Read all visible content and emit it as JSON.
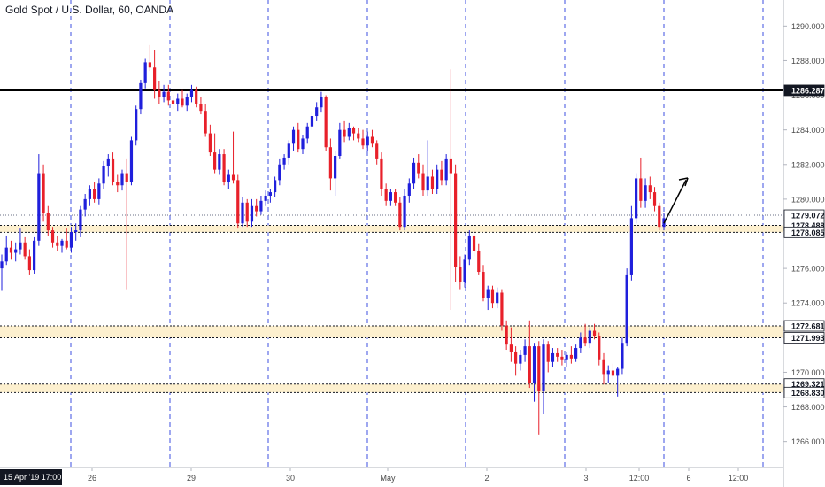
{
  "header": {
    "title": "Gold Spot / U.S. Dollar, 60, OANDA"
  },
  "colors": {
    "up": "#1f1fdc",
    "down": "#e8202a",
    "zone_fill": "#fdf0cf",
    "grid_dash": "#3d4fe0",
    "axis_text": "#4a4a4a",
    "label_bg": "#ffffff",
    "date_badge_bg": "#131722"
  },
  "chart_data": {
    "type": "candlestick",
    "title": "Gold Spot / U.S. Dollar, 60, OANDA",
    "x_tick_labels": [
      "26",
      "29",
      "30",
      "May",
      "2",
      "3",
      "12:00",
      "6",
      "12:00"
    ],
    "x_start_label": "15 Apr '19  17:00",
    "y_tick_labels": [
      "1266.000",
      "1268.000",
      "1270.000",
      "1272.000",
      "1274.000",
      "1276.000",
      "1278.000",
      "1280.000",
      "1282.000",
      "1284.000",
      "1286.000",
      "1288.000",
      "1290.000"
    ],
    "ylim": [
      1264.5,
      1291.5
    ],
    "y_ticks": [
      1266,
      1268,
      1270,
      1272,
      1274,
      1276,
      1278,
      1280,
      1282,
      1284,
      1286,
      1288,
      1290
    ],
    "price_lines": [
      {
        "label": "1286.287",
        "value": 1286.287,
        "style": "solid"
      },
      {
        "label": "1279.072",
        "value": 1279.072,
        "style": "dotted"
      }
    ],
    "zones": [
      {
        "top": 1278.488,
        "bottom": 1278.085,
        "top_label": "1278.488",
        "bottom_label": "1278.085"
      },
      {
        "top": 1272.681,
        "bottom": 1271.993,
        "top_label": "1272.681",
        "bottom_label": "1271.993"
      },
      {
        "top": 1269.321,
        "bottom": 1268.83,
        "top_label": "1269.321",
        "bottom_label": "1268.830"
      }
    ],
    "session_dividers": 8,
    "annotation": "upward arrow",
    "candles": [
      [
        1276.0,
        1276.8,
        1274.7,
        1276.4
      ],
      [
        1276.4,
        1277.9,
        1276.2,
        1277.2
      ],
      [
        1277.2,
        1277.6,
        1276.5,
        1276.9
      ],
      [
        1276.9,
        1277.5,
        1276.4,
        1277.1
      ],
      [
        1277.1,
        1278.3,
        1276.8,
        1277.5
      ],
      [
        1277.5,
        1277.8,
        1276.5,
        1276.7
      ],
      [
        1276.7,
        1277.1,
        1275.6,
        1275.9
      ],
      [
        1275.9,
        1277.8,
        1275.7,
        1277.6
      ],
      [
        1277.6,
        1282.6,
        1277.3,
        1281.5
      ],
      [
        1281.5,
        1282.0,
        1278.7,
        1279.2
      ],
      [
        1279.2,
        1279.6,
        1277.9,
        1278.2
      ],
      [
        1278.2,
        1278.4,
        1277.2,
        1277.5
      ],
      [
        1277.5,
        1277.9,
        1277.0,
        1277.3
      ],
      [
        1277.3,
        1277.7,
        1276.9,
        1277.6
      ],
      [
        1277.6,
        1278.3,
        1277.1,
        1277.2
      ],
      [
        1277.2,
        1278.4,
        1276.9,
        1278.1
      ],
      [
        1278.1,
        1278.6,
        1277.6,
        1278.2
      ],
      [
        1278.2,
        1279.6,
        1277.8,
        1279.4
      ],
      [
        1279.4,
        1280.3,
        1279.0,
        1280.0
      ],
      [
        1280.0,
        1280.8,
        1279.6,
        1280.6
      ],
      [
        1280.6,
        1281.0,
        1279.8,
        1280.0
      ],
      [
        1280.0,
        1281.2,
        1279.7,
        1280.9
      ],
      [
        1280.9,
        1282.2,
        1280.6,
        1281.9
      ],
      [
        1281.9,
        1282.6,
        1281.3,
        1282.3
      ],
      [
        1282.3,
        1282.7,
        1280.8,
        1281.0
      ],
      [
        1281.0,
        1281.4,
        1280.4,
        1280.8
      ],
      [
        1280.8,
        1281.7,
        1280.5,
        1281.5
      ],
      [
        1281.5,
        1282.3,
        1274.8,
        1281.0
      ],
      [
        1281.0,
        1283.6,
        1280.8,
        1283.4
      ],
      [
        1283.4,
        1285.4,
        1283.1,
        1285.2
      ],
      [
        1285.2,
        1286.9,
        1284.9,
        1286.7
      ],
      [
        1286.7,
        1288.1,
        1286.4,
        1287.9
      ],
      [
        1287.9,
        1288.9,
        1287.4,
        1287.6
      ],
      [
        1287.6,
        1288.6,
        1285.8,
        1286.3
      ],
      [
        1286.3,
        1286.8,
        1285.5,
        1285.9
      ],
      [
        1285.9,
        1286.6,
        1285.6,
        1286.2
      ],
      [
        1286.2,
        1286.6,
        1285.4,
        1285.7
      ],
      [
        1285.7,
        1286.0,
        1285.2,
        1285.5
      ],
      [
        1285.5,
        1286.1,
        1285.1,
        1285.8
      ],
      [
        1285.8,
        1286.3,
        1285.3,
        1285.4
      ],
      [
        1285.4,
        1286.1,
        1285.1,
        1285.9
      ],
      [
        1285.9,
        1286.6,
        1285.6,
        1286.3
      ],
      [
        1286.3,
        1286.5,
        1285.3,
        1285.5
      ],
      [
        1285.5,
        1285.9,
        1284.9,
        1285.1
      ],
      [
        1285.1,
        1285.5,
        1283.6,
        1283.8
      ],
      [
        1283.8,
        1284.3,
        1282.5,
        1282.7
      ],
      [
        1282.7,
        1283.8,
        1281.5,
        1281.7
      ],
      [
        1281.7,
        1282.9,
        1281.4,
        1282.6
      ],
      [
        1282.6,
        1282.9,
        1280.8,
        1281.0
      ],
      [
        1281.0,
        1281.7,
        1280.6,
        1281.4
      ],
      [
        1281.4,
        1283.9,
        1280.9,
        1281.1
      ],
      [
        1281.1,
        1281.4,
        1278.3,
        1278.6
      ],
      [
        1278.6,
        1280.1,
        1278.4,
        1279.8
      ],
      [
        1279.8,
        1280.0,
        1278.4,
        1278.7
      ],
      [
        1278.7,
        1280.0,
        1278.4,
        1279.6
      ],
      [
        1279.6,
        1280.0,
        1279.0,
        1279.3
      ],
      [
        1279.3,
        1280.2,
        1279.1,
        1279.9
      ],
      [
        1279.9,
        1280.5,
        1279.6,
        1280.2
      ],
      [
        1280.2,
        1280.6,
        1279.8,
        1280.4
      ],
      [
        1280.4,
        1281.3,
        1280.1,
        1281.1
      ],
      [
        1281.1,
        1282.3,
        1280.8,
        1282.0
      ],
      [
        1282.0,
        1282.6,
        1281.7,
        1282.4
      ],
      [
        1282.4,
        1283.4,
        1282.0,
        1283.2
      ],
      [
        1283.2,
        1284.2,
        1282.8,
        1284.0
      ],
      [
        1284.0,
        1284.4,
        1282.7,
        1282.9
      ],
      [
        1282.9,
        1283.7,
        1282.6,
        1283.5
      ],
      [
        1283.5,
        1284.4,
        1283.2,
        1284.2
      ],
      [
        1284.2,
        1285.0,
        1284.0,
        1284.8
      ],
      [
        1284.8,
        1285.6,
        1284.5,
        1285.3
      ],
      [
        1285.3,
        1286.2,
        1285.0,
        1285.9
      ],
      [
        1285.9,
        1286.0,
        1282.8,
        1283.0
      ],
      [
        1283.0,
        1283.5,
        1280.5,
        1281.2
      ],
      [
        1281.2,
        1282.8,
        1280.2,
        1282.5
      ],
      [
        1282.5,
        1284.4,
        1282.3,
        1284.0
      ],
      [
        1284.0,
        1284.5,
        1283.3,
        1283.6
      ],
      [
        1283.6,
        1284.4,
        1283.4,
        1284.1
      ],
      [
        1284.1,
        1284.2,
        1283.4,
        1283.8
      ],
      [
        1283.8,
        1284.1,
        1283.3,
        1283.5
      ],
      [
        1283.5,
        1284.0,
        1282.9,
        1283.1
      ],
      [
        1283.1,
        1283.9,
        1282.8,
        1283.6
      ],
      [
        1283.6,
        1284.0,
        1283.0,
        1283.2
      ],
      [
        1283.2,
        1283.4,
        1282.0,
        1282.3
      ],
      [
        1282.3,
        1282.7,
        1280.2,
        1280.6
      ],
      [
        1280.6,
        1280.9,
        1279.6,
        1279.9
      ],
      [
        1279.9,
        1280.6,
        1279.6,
        1280.4
      ],
      [
        1280.4,
        1280.6,
        1279.6,
        1279.8
      ],
      [
        1279.8,
        1280.1,
        1278.2,
        1278.4
      ],
      [
        1278.4,
        1280.6,
        1278.2,
        1280.2
      ],
      [
        1280.2,
        1281.2,
        1279.8,
        1280.9
      ],
      [
        1280.9,
        1282.4,
        1280.6,
        1282.1
      ],
      [
        1282.1,
        1282.6,
        1281.2,
        1281.5
      ],
      [
        1281.5,
        1282.0,
        1280.2,
        1280.5
      ],
      [
        1280.5,
        1283.4,
        1280.2,
        1281.3
      ],
      [
        1281.3,
        1281.7,
        1280.3,
        1280.6
      ],
      [
        1280.6,
        1282.0,
        1280.3,
        1281.7
      ],
      [
        1281.7,
        1282.2,
        1280.8,
        1281.1
      ],
      [
        1281.1,
        1282.6,
        1280.8,
        1282.3
      ],
      [
        1282.3,
        1287.5,
        1273.6,
        1281.5
      ],
      [
        1281.5,
        1282.0,
        1275.2,
        1276.1
      ],
      [
        1276.1,
        1276.7,
        1274.8,
        1275.2
      ],
      [
        1275.2,
        1276.8,
        1274.9,
        1276.5
      ],
      [
        1276.5,
        1278.2,
        1276.2,
        1277.9
      ],
      [
        1277.9,
        1278.2,
        1276.7,
        1277.0
      ],
      [
        1277.0,
        1277.4,
        1275.6,
        1275.8
      ],
      [
        1275.8,
        1276.2,
        1274.1,
        1274.3
      ],
      [
        1274.3,
        1275.0,
        1273.6,
        1274.8
      ],
      [
        1274.8,
        1275.0,
        1273.7,
        1274.0
      ],
      [
        1274.0,
        1274.9,
        1273.7,
        1274.6
      ],
      [
        1274.6,
        1274.8,
        1272.4,
        1272.7
      ],
      [
        1272.7,
        1273.0,
        1271.3,
        1271.6
      ],
      [
        1271.6,
        1272.6,
        1270.6,
        1271.2
      ],
      [
        1271.2,
        1271.5,
        1269.8,
        1270.5
      ],
      [
        1270.5,
        1271.3,
        1270.1,
        1271.0
      ],
      [
        1271.0,
        1271.9,
        1270.6,
        1271.5
      ],
      [
        1271.5,
        1273.0,
        1269.1,
        1269.4
      ],
      [
        1269.4,
        1271.7,
        1268.3,
        1271.5
      ],
      [
        1271.5,
        1271.8,
        1266.4,
        1268.9
      ],
      [
        1268.9,
        1271.9,
        1267.6,
        1271.6
      ],
      [
        1271.6,
        1271.8,
        1270.0,
        1270.6
      ],
      [
        1270.6,
        1271.4,
        1270.3,
        1271.1
      ],
      [
        1271.1,
        1271.4,
        1270.6,
        1270.9
      ],
      [
        1270.9,
        1271.3,
        1270.4,
        1270.7
      ],
      [
        1270.7,
        1271.2,
        1270.3,
        1271.0
      ],
      [
        1271.0,
        1271.5,
        1270.5,
        1270.8
      ],
      [
        1270.8,
        1271.6,
        1270.6,
        1271.4
      ],
      [
        1271.4,
        1272.3,
        1271.1,
        1272.0
      ],
      [
        1272.0,
        1272.8,
        1271.5,
        1271.7
      ],
      [
        1271.7,
        1272.6,
        1271.4,
        1272.4
      ],
      [
        1272.4,
        1272.8,
        1271.9,
        1272.1
      ],
      [
        1272.1,
        1272.3,
        1270.4,
        1270.7
      ],
      [
        1270.7,
        1271.1,
        1269.3,
        1269.9
      ],
      [
        1269.9,
        1270.4,
        1269.4,
        1270.1
      ],
      [
        1270.1,
        1270.5,
        1269.6,
        1269.8
      ],
      [
        1269.8,
        1270.3,
        1268.6,
        1270.2
      ],
      [
        1270.2,
        1272.0,
        1269.9,
        1271.7
      ],
      [
        1271.7,
        1276.0,
        1271.5,
        1275.6
      ],
      [
        1275.6,
        1279.6,
        1275.3,
        1278.9
      ],
      [
        1278.9,
        1281.5,
        1278.6,
        1281.2
      ],
      [
        1281.2,
        1282.4,
        1279.5,
        1279.9
      ],
      [
        1279.9,
        1281.2,
        1279.5,
        1280.8
      ],
      [
        1280.8,
        1281.3,
        1280.0,
        1280.4
      ],
      [
        1280.4,
        1280.7,
        1279.3,
        1279.6
      ],
      [
        1279.6,
        1279.8,
        1278.2,
        1278.4
      ],
      [
        1278.4,
        1279.2,
        1278.2,
        1278.9
      ]
    ]
  }
}
